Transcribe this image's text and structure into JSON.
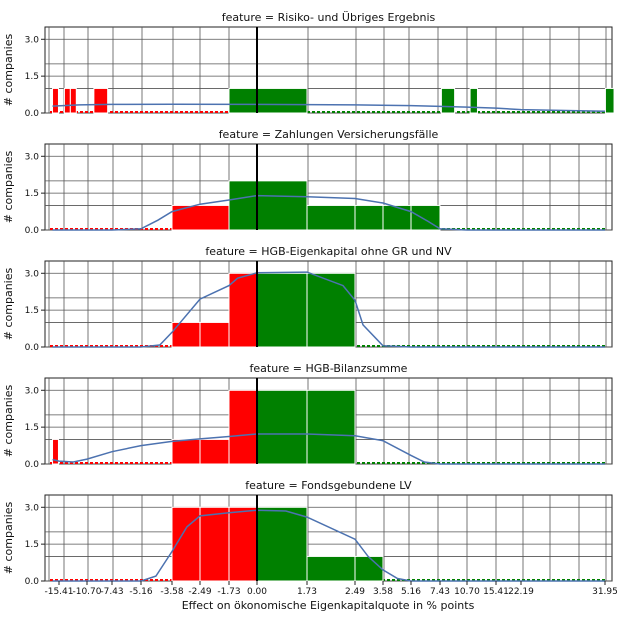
{
  "chart_data": {
    "type": "histogram",
    "xlabel": "Effect on ökonomische Eigenkapitalquote in % points",
    "ylabel": "# companies",
    "ylim": [
      0,
      3.5
    ],
    "yticks": [
      "0.0",
      "1.5",
      "3.0"
    ],
    "ytick_values": [
      0,
      1.5,
      3.0
    ],
    "xticks": [
      "-15.41",
      "-10.70",
      "-7.43",
      "-5.16",
      "-3.58",
      "-2.49",
      "-1.73",
      "0.00",
      "1.73",
      "2.49",
      "3.58",
      "5.16",
      "7.43",
      "10.70",
      "15.41",
      "22.19",
      "31.95"
    ],
    "xtick_values": [
      -15.41,
      -10.7,
      -7.43,
      -5.16,
      -3.58,
      -2.49,
      -1.73,
      0.0,
      1.73,
      2.49,
      3.58,
      5.16,
      7.43,
      10.7,
      15.41,
      22.19,
      31.95
    ],
    "colors": {
      "negative": "#ff0000",
      "positive": "#008000",
      "kde": "#4c72b0",
      "zero_line": "#000000"
    },
    "panels": [
      {
        "title": "feature = Risiko- und Übriges Ergebnis",
        "bars": [
          {
            "x0": -16.5,
            "x1": -15.5,
            "value": 1
          },
          {
            "x0": -14.5,
            "x1": -13.5,
            "value": 1
          },
          {
            "x0": -13.5,
            "x1": -12.5,
            "value": 1
          },
          {
            "x0": -9.8,
            "x1": -8.0,
            "value": 1
          },
          {
            "x0": -1.73,
            "x1": 1.73,
            "value": 1
          },
          {
            "x0": 7.6,
            "x1": 9.2,
            "value": 1
          },
          {
            "x0": 11.2,
            "x1": 12.4,
            "value": 1
          },
          {
            "x0": 32.0,
            "x1": 33.0,
            "value": 1
          }
        ],
        "kde": [
          [
            -16.5,
            0.28
          ],
          [
            -12,
            0.33
          ],
          [
            -7.43,
            0.35
          ],
          [
            -3.58,
            0.36
          ],
          [
            0,
            0.35
          ],
          [
            2.49,
            0.33
          ],
          [
            5.16,
            0.3
          ],
          [
            7.43,
            0.27
          ],
          [
            10.7,
            0.24
          ],
          [
            15.41,
            0.2
          ],
          [
            22.19,
            0.14
          ],
          [
            31.95,
            0.07
          ]
        ]
      },
      {
        "title": "feature = Zahlungen Versicherungsfälle",
        "bars": [
          {
            "x0": -3.58,
            "x1": -1.73,
            "value": 1
          },
          {
            "x0": -1.73,
            "x1": 1.73,
            "value": 2
          },
          {
            "x0": 1.73,
            "x1": 2.49,
            "value": 1
          },
          {
            "x0": 2.49,
            "x1": 3.58,
            "value": 1
          },
          {
            "x0": 3.58,
            "x1": 5.16,
            "value": 1
          },
          {
            "x0": 5.16,
            "x1": 7.43,
            "value": 1
          }
        ],
        "kde": [
          [
            -16.5,
            0
          ],
          [
            -7.43,
            0
          ],
          [
            -5.16,
            0.05
          ],
          [
            -4.3,
            0.4
          ],
          [
            -3.58,
            0.75
          ],
          [
            -2.49,
            1.05
          ],
          [
            -1.73,
            1.22
          ],
          [
            0,
            1.4
          ],
          [
            1.73,
            1.35
          ],
          [
            2.49,
            1.28
          ],
          [
            3.58,
            1.1
          ],
          [
            5.16,
            0.75
          ],
          [
            6.5,
            0.35
          ],
          [
            7.43,
            0.05
          ],
          [
            10.7,
            0
          ],
          [
            31.95,
            0
          ]
        ]
      },
      {
        "title": "feature = HGB-Eigenkapital ohne GR und NV",
        "bars": [
          {
            "x0": -3.58,
            "x1": -2.49,
            "value": 1
          },
          {
            "x0": -2.49,
            "x1": -1.73,
            "value": 1
          },
          {
            "x0": -1.73,
            "x1": 0.0,
            "value": 3
          },
          {
            "x0": 0.0,
            "x1": 1.73,
            "value": 3
          },
          {
            "x0": 1.73,
            "x1": 2.49,
            "value": 3
          }
        ],
        "kde": [
          [
            -16.5,
            0
          ],
          [
            -5.16,
            0
          ],
          [
            -4.2,
            0.08
          ],
          [
            -3.58,
            0.6
          ],
          [
            -2.49,
            1.95
          ],
          [
            -1.73,
            2.5
          ],
          [
            -1.2,
            2.8
          ],
          [
            0,
            3.02
          ],
          [
            1.73,
            3.05
          ],
          [
            2.3,
            2.5
          ],
          [
            2.49,
            1.9
          ],
          [
            2.8,
            0.9
          ],
          [
            3.58,
            0.05
          ],
          [
            5.16,
            0
          ],
          [
            31.95,
            0
          ]
        ]
      },
      {
        "title": "feature = HGB-Bilanzsumme",
        "bars": [
          {
            "x0": -16.5,
            "x1": -15.5,
            "value": 1
          },
          {
            "x0": -3.58,
            "x1": -2.49,
            "value": 1
          },
          {
            "x0": -2.49,
            "x1": -1.73,
            "value": 1
          },
          {
            "x0": -1.73,
            "x1": 0.0,
            "value": 3
          },
          {
            "x0": 0.0,
            "x1": 1.73,
            "value": 3
          },
          {
            "x0": 1.73,
            "x1": 2.49,
            "value": 3
          }
        ],
        "kde": [
          [
            -16.5,
            0.18
          ],
          [
            -15.41,
            0.12
          ],
          [
            -13,
            0.08
          ],
          [
            -10.7,
            0.2
          ],
          [
            -7.43,
            0.5
          ],
          [
            -5.16,
            0.75
          ],
          [
            -3.58,
            0.92
          ],
          [
            -2.49,
            1.02
          ],
          [
            -1.73,
            1.12
          ],
          [
            0,
            1.22
          ],
          [
            1.73,
            1.22
          ],
          [
            2.49,
            1.15
          ],
          [
            3.58,
            0.95
          ],
          [
            5.16,
            0.35
          ],
          [
            6.2,
            0.08
          ],
          [
            7.43,
            0
          ],
          [
            31.95,
            0
          ]
        ]
      },
      {
        "title": "feature = Fondsgebundene LV",
        "bars": [
          {
            "x0": -3.58,
            "x1": -2.49,
            "value": 3
          },
          {
            "x0": -2.49,
            "x1": -1.73,
            "value": 3
          },
          {
            "x0": -1.73,
            "x1": 0.0,
            "value": 3
          },
          {
            "x0": 0.0,
            "x1": 1.73,
            "value": 3
          },
          {
            "x0": 1.73,
            "x1": 2.49,
            "value": 1
          },
          {
            "x0": 2.49,
            "x1": 3.58,
            "value": 1
          }
        ],
        "kde": [
          [
            -16.5,
            0
          ],
          [
            -5.16,
            0
          ],
          [
            -4.4,
            0.2
          ],
          [
            -3.58,
            1.2
          ],
          [
            -3.0,
            2.2
          ],
          [
            -2.49,
            2.65
          ],
          [
            -1.73,
            2.78
          ],
          [
            0,
            2.88
          ],
          [
            1.0,
            2.85
          ],
          [
            1.73,
            2.6
          ],
          [
            2.49,
            1.7
          ],
          [
            3.0,
            1.0
          ],
          [
            3.58,
            0.45
          ],
          [
            4.4,
            0.1
          ],
          [
            5.16,
            0
          ],
          [
            31.95,
            0
          ]
        ]
      }
    ]
  }
}
